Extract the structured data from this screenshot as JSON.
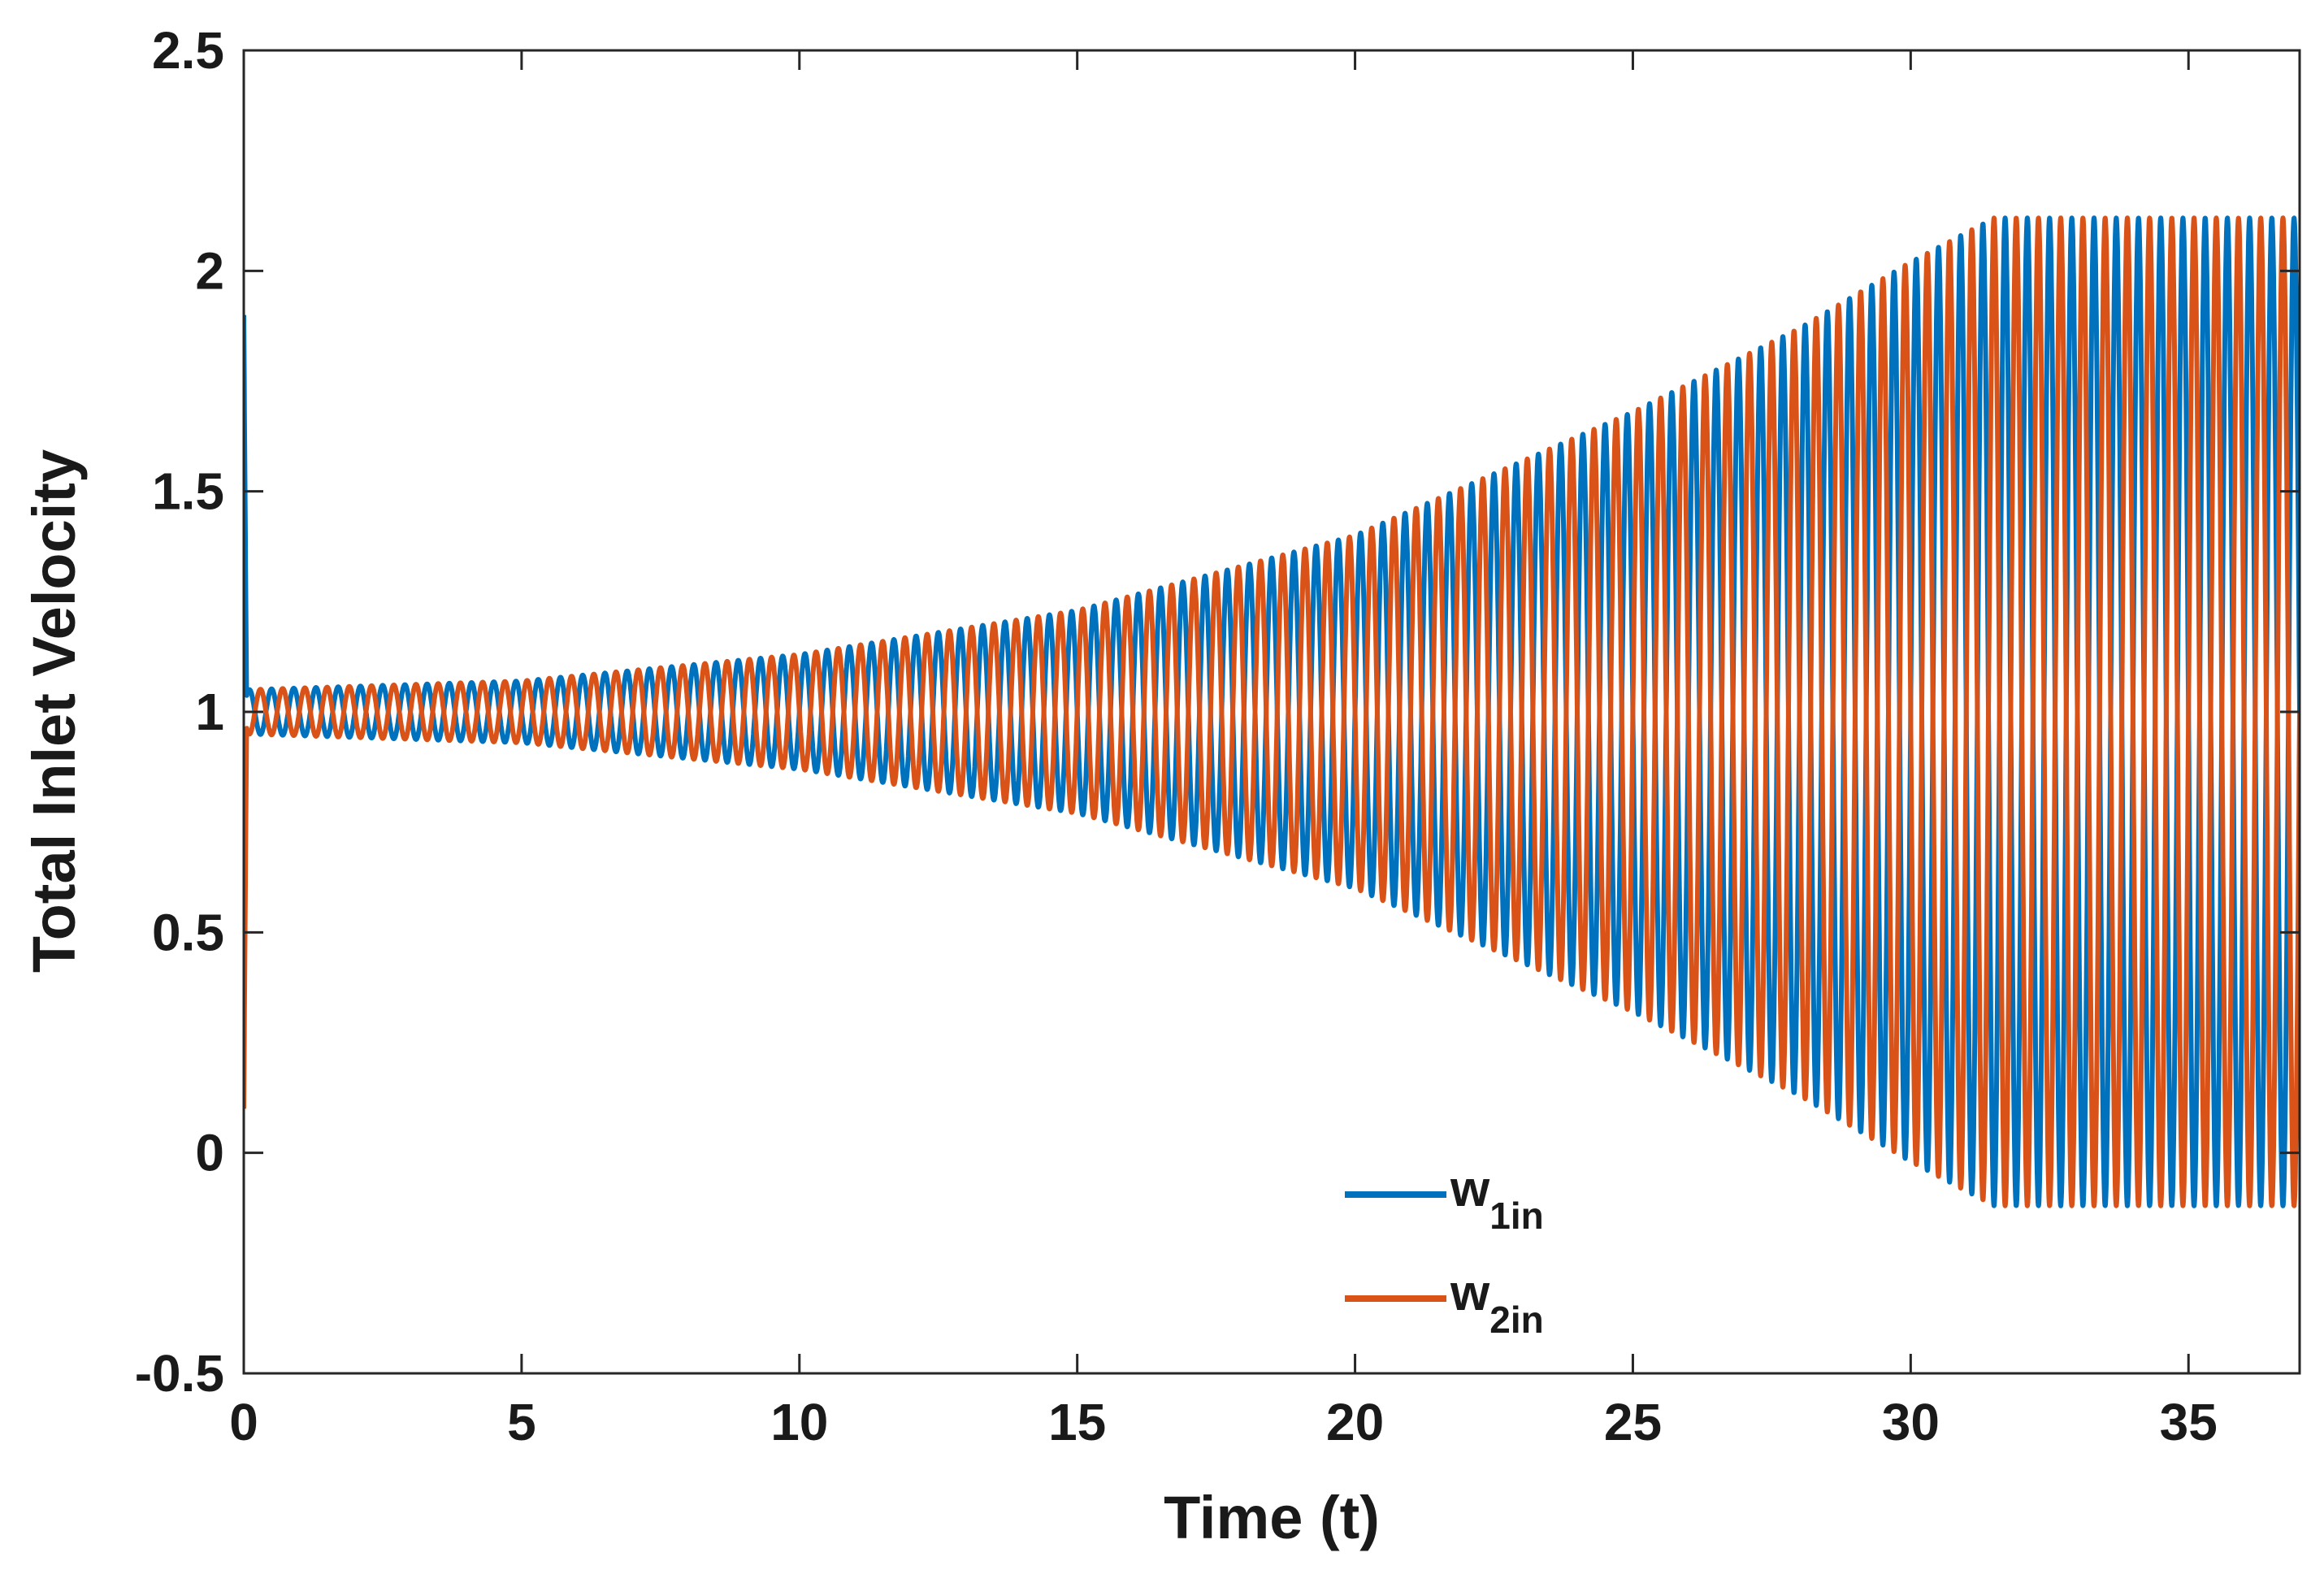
{
  "chart_data": {
    "type": "line",
    "title": "",
    "xlabel": "Time (t)",
    "ylabel": "Total Inlet Velocity",
    "xlim": [
      0,
      37
    ],
    "ylim": [
      -0.5,
      2.5
    ],
    "xticks": [
      0,
      5,
      10,
      15,
      20,
      25,
      30,
      35
    ],
    "xtick_labels": [
      "0",
      "5",
      "10",
      "15",
      "20",
      "25",
      "30",
      "35"
    ],
    "yticks": [
      -0.5,
      0,
      0.5,
      1,
      1.5,
      2,
      2.5
    ],
    "ytick_labels": [
      "-0.5",
      "0",
      "0.5",
      "1",
      "1.5",
      "2",
      "2.5"
    ],
    "grid": false,
    "legend_position": "bottom-center",
    "oscillation_period": 0.4,
    "initial_transient": {
      "w1_start": 1.9,
      "w2_start": 0.1,
      "settle_time": 0.05
    },
    "amplitude_envelope": {
      "t": [
        0,
        5,
        10,
        15,
        20,
        25,
        28,
        30,
        31.5,
        37
      ],
      "amplitude": [
        0.05,
        0.07,
        0.13,
        0.23,
        0.4,
        0.68,
        0.87,
        1.02,
        1.12,
        1.12
      ]
    },
    "saturation": {
      "start_time": 31.5,
      "max": 2.12,
      "min": -0.12
    },
    "series": [
      {
        "name": "w1in",
        "legend_main": "w",
        "legend_sub": "1in",
        "color": "#0072BD",
        "phase_offset": 0
      },
      {
        "name": "w2in",
        "legend_main": "w",
        "legend_sub": "2in",
        "color": "#D95319",
        "phase_offset": 0.5
      }
    ]
  }
}
